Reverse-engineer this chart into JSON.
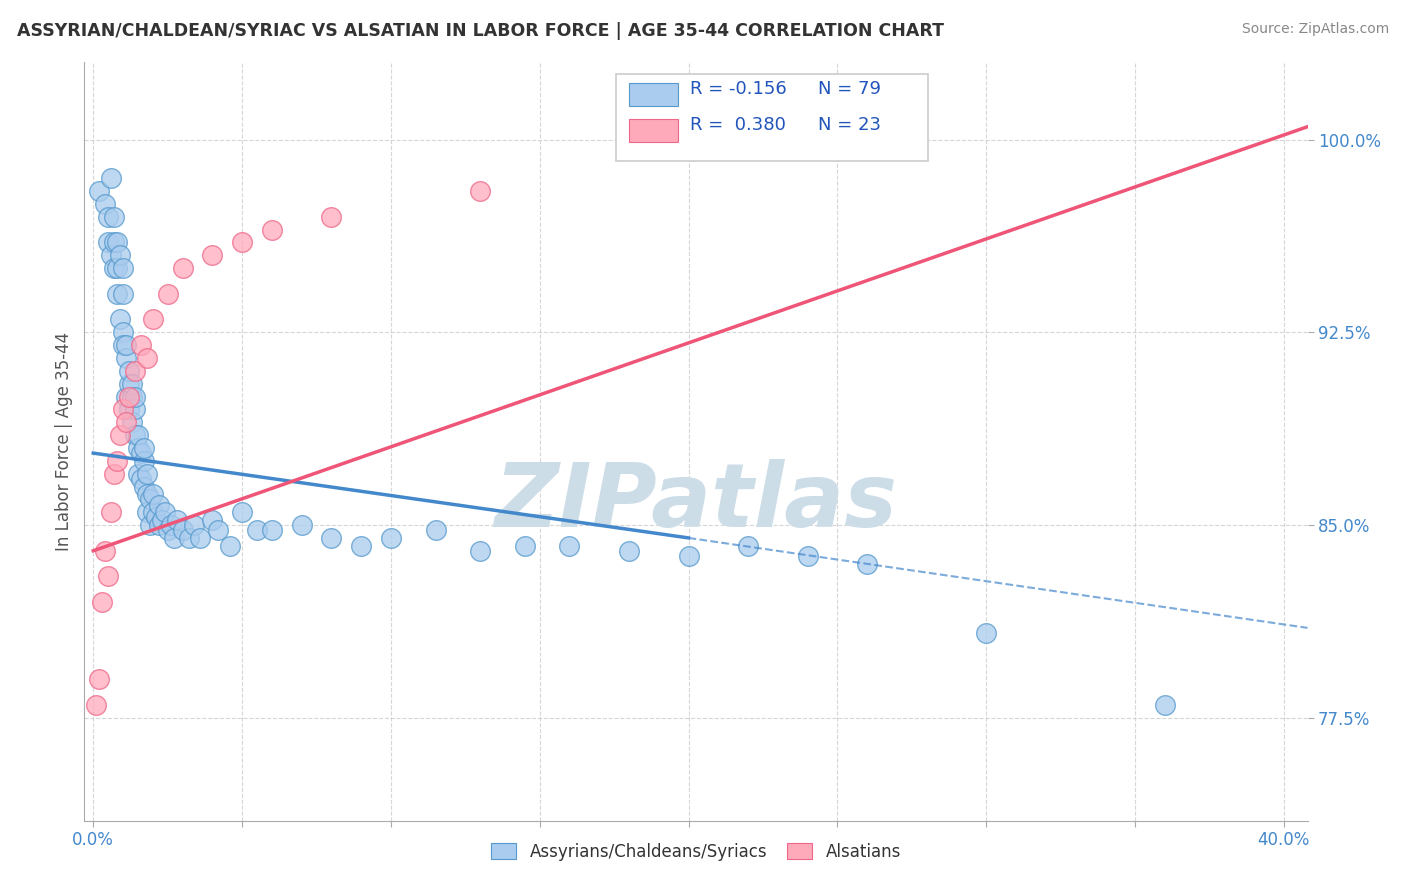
{
  "title": "ASSYRIAN/CHALDEAN/SYRIAC VS ALSATIAN IN LABOR FORCE | AGE 35-44 CORRELATION CHART",
  "source": "Source: ZipAtlas.com",
  "ylabel": "In Labor Force | Age 35-44",
  "xlim": [
    -0.003,
    0.408
  ],
  "ylim": [
    0.735,
    1.03
  ],
  "blue_color": "#aaccee",
  "blue_edge_color": "#5599cc",
  "pink_color": "#ffaabb",
  "pink_edge_color": "#ee6688",
  "blue_line_color": "#4488cc",
  "pink_line_color": "#ee5577",
  "watermark_text": "ZIPatlas",
  "watermark_color": "#ccdde8",
  "legend1_label": "Assyrians/Chaldeans/Syriacs",
  "legend2_label": "Alsatians",
  "blue_scatter_x": [
    0.002,
    0.004,
    0.005,
    0.005,
    0.006,
    0.006,
    0.007,
    0.007,
    0.007,
    0.008,
    0.008,
    0.008,
    0.009,
    0.009,
    0.01,
    0.01,
    0.01,
    0.01,
    0.011,
    0.011,
    0.011,
    0.012,
    0.012,
    0.012,
    0.013,
    0.013,
    0.013,
    0.014,
    0.014,
    0.014,
    0.015,
    0.015,
    0.015,
    0.016,
    0.016,
    0.017,
    0.017,
    0.017,
    0.018,
    0.018,
    0.018,
    0.019,
    0.019,
    0.02,
    0.02,
    0.021,
    0.022,
    0.022,
    0.023,
    0.024,
    0.025,
    0.026,
    0.027,
    0.028,
    0.03,
    0.032,
    0.034,
    0.036,
    0.04,
    0.042,
    0.046,
    0.05,
    0.055,
    0.06,
    0.07,
    0.08,
    0.09,
    0.1,
    0.115,
    0.13,
    0.145,
    0.16,
    0.18,
    0.2,
    0.22,
    0.24,
    0.26,
    0.3,
    0.36
  ],
  "blue_scatter_y": [
    0.98,
    0.975,
    0.97,
    0.96,
    0.955,
    0.985,
    0.96,
    0.97,
    0.95,
    0.94,
    0.96,
    0.95,
    0.93,
    0.955,
    0.925,
    0.92,
    0.94,
    0.95,
    0.915,
    0.9,
    0.92,
    0.905,
    0.895,
    0.91,
    0.9,
    0.89,
    0.905,
    0.885,
    0.895,
    0.9,
    0.88,
    0.87,
    0.885,
    0.878,
    0.868,
    0.875,
    0.865,
    0.88,
    0.87,
    0.862,
    0.855,
    0.86,
    0.85,
    0.855,
    0.862,
    0.853,
    0.85,
    0.858,
    0.852,
    0.855,
    0.848,
    0.85,
    0.845,
    0.852,
    0.848,
    0.845,
    0.85,
    0.845,
    0.852,
    0.848,
    0.842,
    0.855,
    0.848,
    0.848,
    0.85,
    0.845,
    0.842,
    0.845,
    0.848,
    0.84,
    0.842,
    0.842,
    0.84,
    0.838,
    0.842,
    0.838,
    0.835,
    0.808,
    0.78
  ],
  "pink_scatter_x": [
    0.001,
    0.002,
    0.003,
    0.004,
    0.005,
    0.006,
    0.007,
    0.008,
    0.009,
    0.01,
    0.011,
    0.012,
    0.014,
    0.016,
    0.018,
    0.02,
    0.025,
    0.03,
    0.04,
    0.05,
    0.06,
    0.08,
    0.13
  ],
  "pink_scatter_y": [
    0.78,
    0.79,
    0.82,
    0.84,
    0.83,
    0.855,
    0.87,
    0.875,
    0.885,
    0.895,
    0.89,
    0.9,
    0.91,
    0.92,
    0.915,
    0.93,
    0.94,
    0.95,
    0.955,
    0.96,
    0.965,
    0.97,
    0.98
  ],
  "blue_trend_x0": 0.0,
  "blue_trend_x_solid_end": 0.2,
  "blue_trend_x_dash_end": 0.408,
  "blue_trend_y_at_0": 0.878,
  "blue_trend_y_at_20pct": 0.845,
  "blue_trend_y_at_40pct": 0.81,
  "pink_trend_x0": 0.0,
  "pink_trend_x_end": 0.408,
  "pink_trend_y_at_0": 0.84,
  "pink_trend_y_at_40pct": 1.005
}
